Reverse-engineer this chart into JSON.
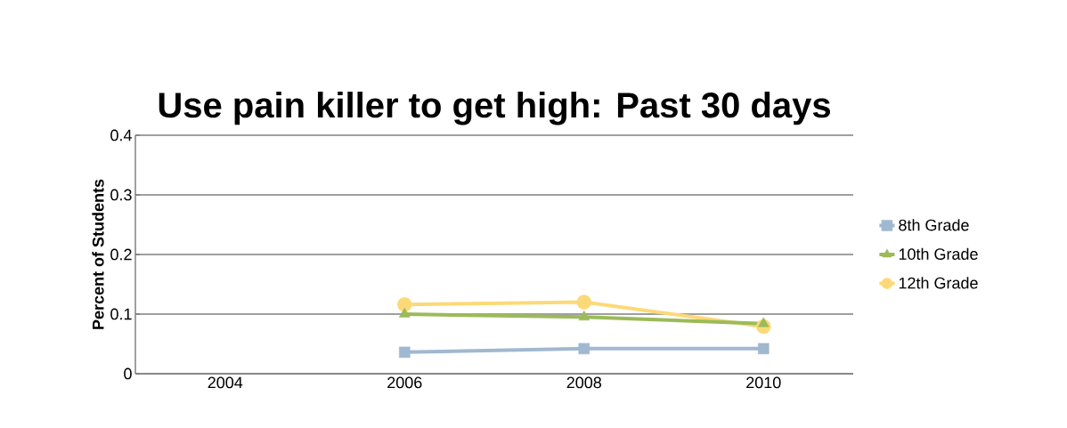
{
  "chart_data": {
    "type": "line",
    "title": "Use pain killer to get high: Past 30 days",
    "ylabel": "Percent of Students",
    "categories": [
      "2004",
      "2006",
      "2008",
      "2010"
    ],
    "series": [
      {
        "name": "8th Grade",
        "color": "#a0b8d0",
        "marker": "square",
        "values": [
          null,
          0.036,
          0.042,
          0.042
        ]
      },
      {
        "name": "10th Grade",
        "color": "#9bbb59",
        "marker": "triangle",
        "values": [
          null,
          0.1,
          0.095,
          0.084
        ]
      },
      {
        "name": "12th Grade",
        "color": "#fcd978",
        "marker": "circle",
        "values": [
          null,
          0.116,
          0.12,
          0.079
        ]
      }
    ],
    "ylim": [
      0,
      0.4
    ],
    "yticks": [
      0,
      0.1,
      0.2,
      0.3,
      0.4
    ],
    "grid": "y",
    "legend": "right"
  }
}
